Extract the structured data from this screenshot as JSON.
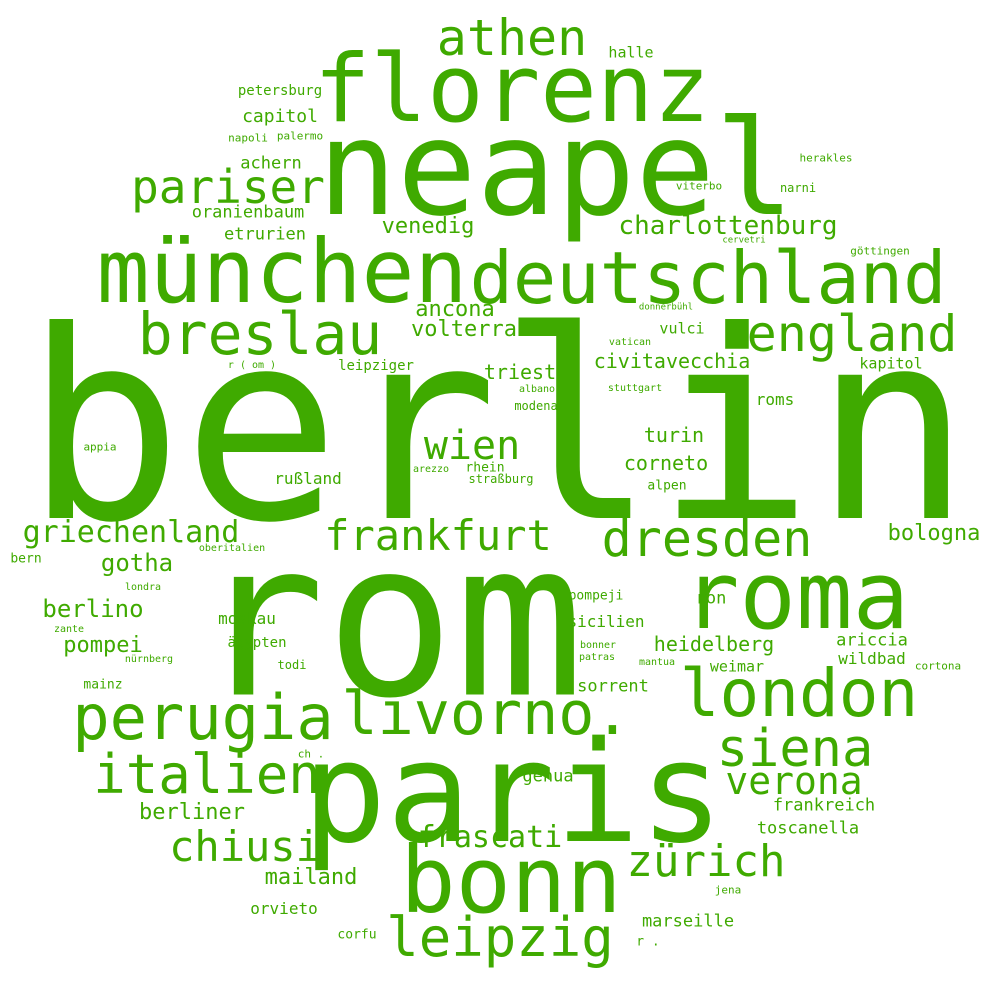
{
  "color": "#3faa00",
  "words": [
    "berlin",
    "rom",
    "paris",
    "neapel",
    "florenz",
    "roma",
    "münchen",
    "deutschland",
    "bonn",
    "london",
    "perugia",
    "livorno.",
    "breslau",
    "england",
    "italien",
    "siena",
    "pariser",
    "athen",
    "leipzig",
    "dresden",
    "frankfurt",
    "zürich",
    "verona",
    "chiusi",
    "wien",
    "griechenland",
    "frascati",
    "charlottenburg",
    "ancona",
    "volterra",
    "venedig",
    "berlino",
    "gotha",
    "berliner",
    "mailand",
    "pompei",
    "bologna",
    "civitavecchia",
    "heidelberg",
    "turin",
    "corneto",
    "triest",
    "frankreich",
    "toscanella",
    "sorrent",
    "capitol",
    "achern",
    "oranienbaum",
    "etrurien",
    "genua",
    "marseille",
    "orvieto",
    "ariccia",
    "wildbad",
    "moskau",
    "ron",
    "roms",
    "sicilien",
    "rußland",
    "petersburg",
    "halle",
    "weimar",
    "vulci",
    "kapitol",
    "leipziger",
    "ägypten",
    "mainz",
    "pompeji",
    "alpen",
    "corfu",
    "rhein",
    "straßburg",
    "modena",
    "herakles",
    "narni",
    "viterbo",
    "göttingen",
    "cervetri",
    "donnerbühl",
    "vatican",
    "stuttgart",
    "albano",
    "arezzo",
    "appia",
    "r ( om )",
    "napoli",
    "palermo",
    "oberitalien",
    "bern",
    "londra",
    "zante",
    "nürnberg",
    "todi",
    "bonner",
    "patras",
    "mantua",
    "cortona",
    "jena",
    "ch .",
    "r ."
  ]
}
